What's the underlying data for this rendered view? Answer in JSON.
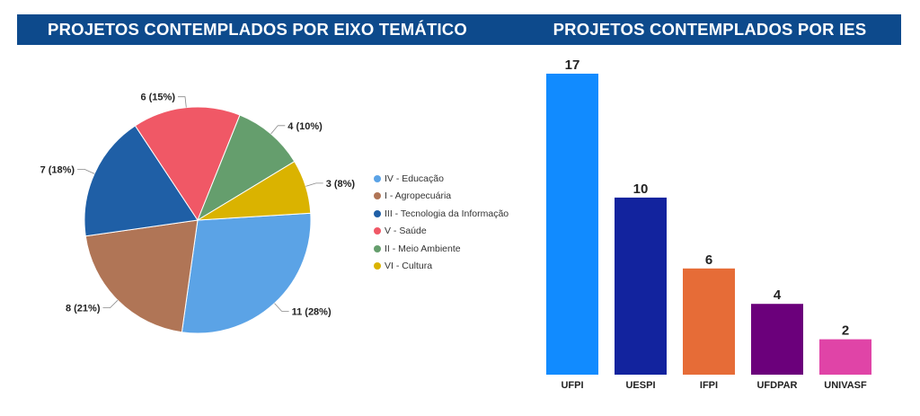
{
  "titles": {
    "left": "PROJETOS CONTEMPLADOS POR EIXO TEMÁTICO",
    "right": "PROJETOS CONTEMPLADOS POR IES"
  },
  "chart_data": [
    {
      "type": "pie",
      "title": "PROJETOS CONTEMPLADOS POR EIXO TEMÁTICO",
      "legend_position": "right",
      "slices": [
        {
          "name": "IV - Educação",
          "value": 11,
          "label": "11 (28%)",
          "color": "#5ba3e6"
        },
        {
          "name": "I - Agropecuária",
          "value": 8,
          "label": "8 (21%)",
          "color": "#b07556"
        },
        {
          "name": "III - Tecnologia da Informação",
          "value": 7,
          "label": "7 (18%)",
          "color": "#1f5fa6"
        },
        {
          "name": "V - Saúde",
          "value": 6,
          "label": "6 (15%)",
          "color": "#f05866"
        },
        {
          "name": "II - Meio Ambiente",
          "value": 4,
          "label": "4 (10%)",
          "color": "#659e6d"
        },
        {
          "name": "VI - Cultura",
          "value": 3,
          "label": "3 (8%)",
          "color": "#dab300"
        }
      ]
    },
    {
      "type": "bar",
      "title": "PROJETOS CONTEMPLADOS POR IES",
      "categories": [
        "UFPI",
        "UESPI",
        "IFPI",
        "UFDPAR",
        "UNIVASF"
      ],
      "values": [
        17,
        10,
        6,
        4,
        2
      ],
      "colors": [
        "#118bff",
        "#12239e",
        "#e66c37",
        "#6b007b",
        "#e044a7"
      ],
      "ylim": [
        0,
        17
      ],
      "grid": false
    }
  ]
}
